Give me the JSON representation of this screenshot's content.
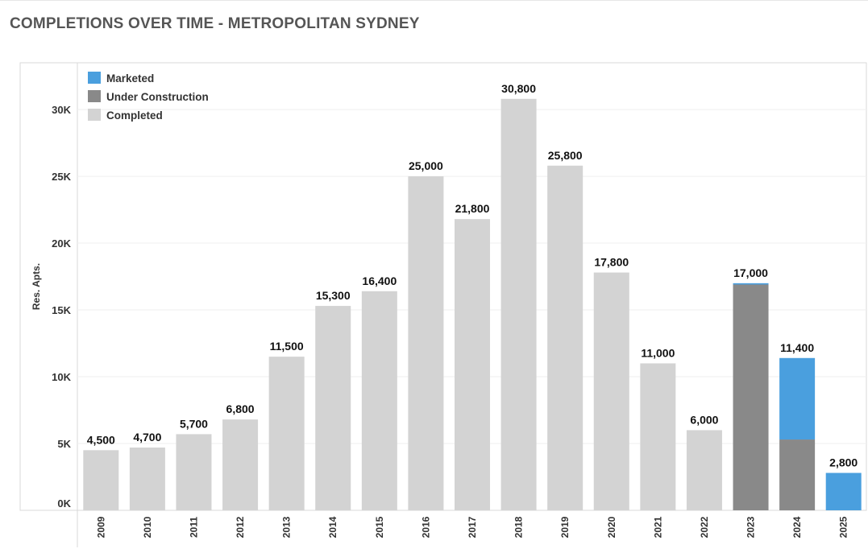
{
  "title": "COMPLETIONS OVER TIME - METROPOLITAN SYDNEY",
  "colors": {
    "Marketed": "#4a9fde",
    "Under Construction": "#898989",
    "Completed": "#d3d3d3"
  },
  "chart_data": {
    "type": "bar",
    "stacked": true,
    "ylabel": "Res. Apts.",
    "ylim": [
      0,
      33500
    ],
    "yticks": [
      0,
      5000,
      10000,
      15000,
      20000,
      25000,
      30000
    ],
    "ytick_labels": [
      "0K",
      "5K",
      "10K",
      "15K",
      "20K",
      "25K",
      "30K"
    ],
    "legend_position": "top-left",
    "categories": [
      "2009",
      "2010",
      "2011",
      "2012",
      "2013",
      "2014",
      "2015",
      "2016",
      "2017",
      "2018",
      "2019",
      "2020",
      "2021",
      "2022",
      "2023",
      "2024",
      "2025"
    ],
    "series": [
      {
        "name": "Completed",
        "values": [
          4500,
          4700,
          5700,
          6800,
          11500,
          15300,
          16400,
          25000,
          21800,
          30800,
          25800,
          17800,
          11000,
          6000,
          0,
          0,
          0
        ]
      },
      {
        "name": "Under Construction",
        "values": [
          0,
          0,
          0,
          0,
          0,
          0,
          0,
          0,
          0,
          0,
          0,
          0,
          0,
          0,
          16900,
          5300,
          0
        ]
      },
      {
        "name": "Marketed",
        "values": [
          0,
          0,
          0,
          0,
          0,
          0,
          0,
          0,
          0,
          0,
          0,
          0,
          0,
          0,
          100,
          6100,
          2800
        ]
      }
    ],
    "legend_order": [
      "Marketed",
      "Under Construction",
      "Completed"
    ],
    "totals_labels": [
      "4,500",
      "4,700",
      "5,700",
      "6,800",
      "11,500",
      "15,300",
      "16,400",
      "25,000",
      "21,800",
      "30,800",
      "25,800",
      "17,800",
      "11,000",
      "6,000",
      "17,000",
      "11,400",
      "2,800"
    ]
  }
}
